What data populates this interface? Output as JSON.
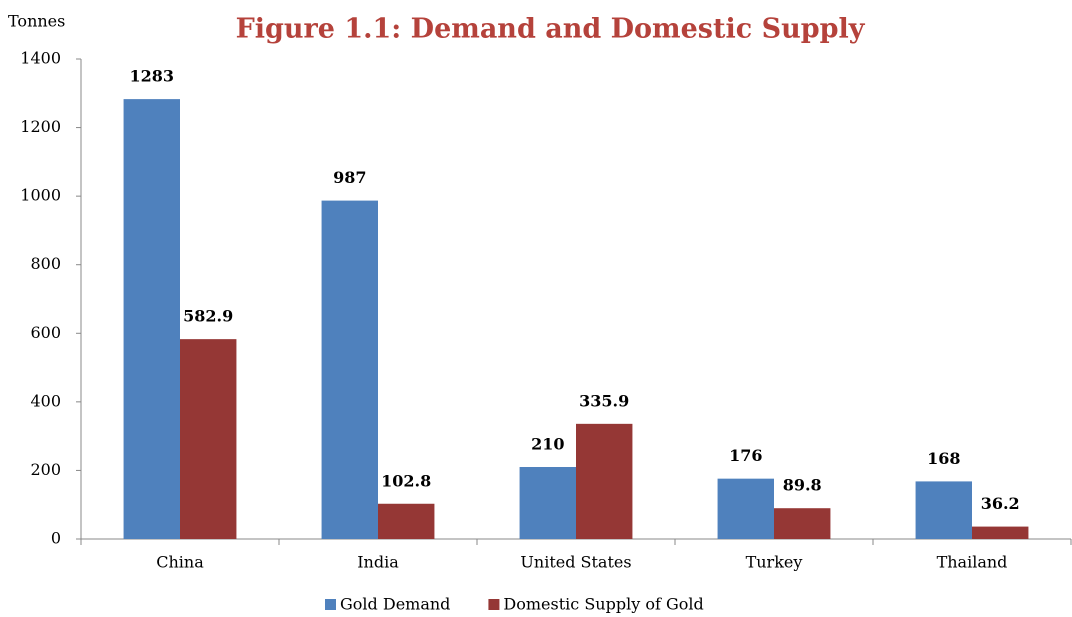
{
  "chart_data": {
    "type": "bar",
    "title": "Figure 1.1: Demand and Domestic Supply",
    "y_label": "Tonnes",
    "categories": [
      "China",
      "India",
      "United States",
      "Turkey",
      "Thailand"
    ],
    "series": [
      {
        "name": "Gold Demand",
        "color": "#4f81bd",
        "values": [
          1283,
          987,
          210,
          176,
          168
        ]
      },
      {
        "name": "Domestic Supply of Gold",
        "color": "#953735",
        "values": [
          582.9,
          102.8,
          335.9,
          89.8,
          36.2
        ]
      }
    ],
    "ylim": [
      0,
      1400
    ],
    "yticks": [
      0,
      200,
      400,
      600,
      800,
      1000,
      1200,
      1400
    ],
    "legend": "bottom"
  }
}
